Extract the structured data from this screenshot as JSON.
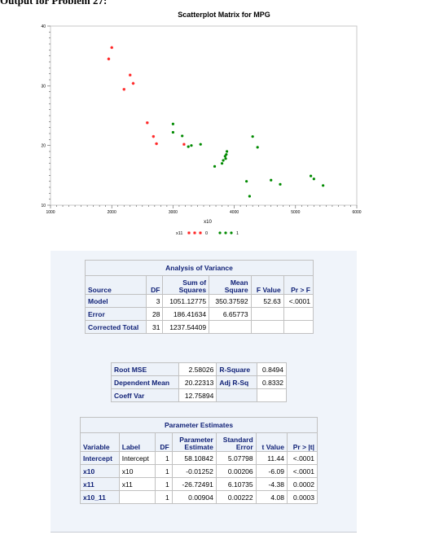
{
  "page_heading": "Output for Problem 27:",
  "plot": {
    "title": "Scatterplot Matrix for MPG",
    "x_label": "x10",
    "x_ticks": [
      1000,
      2000,
      3000,
      4000,
      5000,
      6000
    ],
    "y_ticks": [
      10,
      20,
      30,
      40
    ],
    "xlim": [
      1000,
      6000
    ],
    "ylim": [
      10,
      40
    ],
    "legend": {
      "title": "x11",
      "items": [
        "0",
        "1"
      ]
    },
    "colors": {
      "group0": "#ff2020",
      "group1": "#008a00",
      "frame": "#c8c8c8"
    }
  },
  "chart_data": {
    "type": "scatter",
    "xlabel": "x10",
    "ylabel": "",
    "xlim": [
      1000,
      6000
    ],
    "ylim": [
      10,
      40
    ],
    "grid": false,
    "legend_placement": "bottom",
    "series": [
      {
        "name": "0",
        "marker": "star",
        "points": [
          [
            1950,
            34.5
          ],
          [
            2000,
            36.4
          ],
          [
            2200,
            29.4
          ],
          [
            2300,
            31.8
          ],
          [
            2350,
            30.4
          ],
          [
            2580,
            23.8
          ],
          [
            2680,
            21.5
          ],
          [
            2730,
            20.3
          ],
          [
            3180,
            20.2
          ]
        ]
      },
      {
        "name": "1",
        "marker": "dot",
        "points": [
          [
            3000,
            22.2
          ],
          [
            3000,
            23.6
          ],
          [
            3150,
            21.6
          ],
          [
            3250,
            19.8
          ],
          [
            3300,
            20.0
          ],
          [
            3450,
            20.2
          ],
          [
            3680,
            16.5
          ],
          [
            3800,
            17.0
          ],
          [
            3820,
            17.5
          ],
          [
            3850,
            18.2
          ],
          [
            3860,
            17.8
          ],
          [
            3870,
            18.5
          ],
          [
            3880,
            19.0
          ],
          [
            4200,
            14.0
          ],
          [
            4250,
            11.5
          ],
          [
            4300,
            21.5
          ],
          [
            4380,
            19.7
          ],
          [
            4600,
            14.2
          ],
          [
            4750,
            13.5
          ],
          [
            5250,
            14.9
          ],
          [
            5300,
            14.4
          ],
          [
            5450,
            13.3
          ]
        ]
      }
    ]
  },
  "anova": {
    "caption": "Analysis of Variance",
    "headers": [
      "Source",
      "DF",
      "Sum of Squares",
      "Mean Square",
      "F Value",
      "Pr > F"
    ],
    "header_lines": [
      [
        "Source"
      ],
      [
        "DF"
      ],
      [
        "Sum of",
        "Squares"
      ],
      [
        "Mean",
        "Square"
      ],
      [
        "F Value"
      ],
      [
        "Pr > F"
      ]
    ],
    "rows": [
      [
        "Model",
        "3",
        "1051.12775",
        "350.37592",
        "52.63",
        "<.0001"
      ],
      [
        "Error",
        "28",
        "186.41634",
        "6.65773",
        "",
        ""
      ],
      [
        "Corrected Total",
        "31",
        "1237.54409",
        "",
        "",
        ""
      ]
    ]
  },
  "fit": {
    "rows": [
      [
        "Root MSE",
        "2.58026",
        "R-Square",
        "0.8494"
      ],
      [
        "Dependent Mean",
        "20.22313",
        "Adj R-Sq",
        "0.8332"
      ],
      [
        "Coeff Var",
        "12.75894",
        "",
        ""
      ]
    ]
  },
  "params": {
    "caption": "Parameter Estimates",
    "header_lines": [
      [
        "Variable"
      ],
      [
        "Label"
      ],
      [
        "DF"
      ],
      [
        "Parameter",
        "Estimate"
      ],
      [
        "Standard",
        "Error"
      ],
      [
        "t Value"
      ],
      [
        "Pr > |t|"
      ]
    ],
    "rows": [
      [
        "Intercept",
        "Intercept",
        "1",
        "58.10842",
        "5.07798",
        "11.44",
        "<.0001"
      ],
      [
        "x10",
        "x10",
        "1",
        "-0.01252",
        "0.00206",
        "-6.09",
        "<.0001"
      ],
      [
        "x11",
        "x11",
        "1",
        "-26.72491",
        "6.10735",
        "-4.38",
        "0.0002"
      ],
      [
        "x10_11",
        "",
        "1",
        "0.00904",
        "0.00222",
        "4.08",
        "0.0003"
      ]
    ]
  }
}
